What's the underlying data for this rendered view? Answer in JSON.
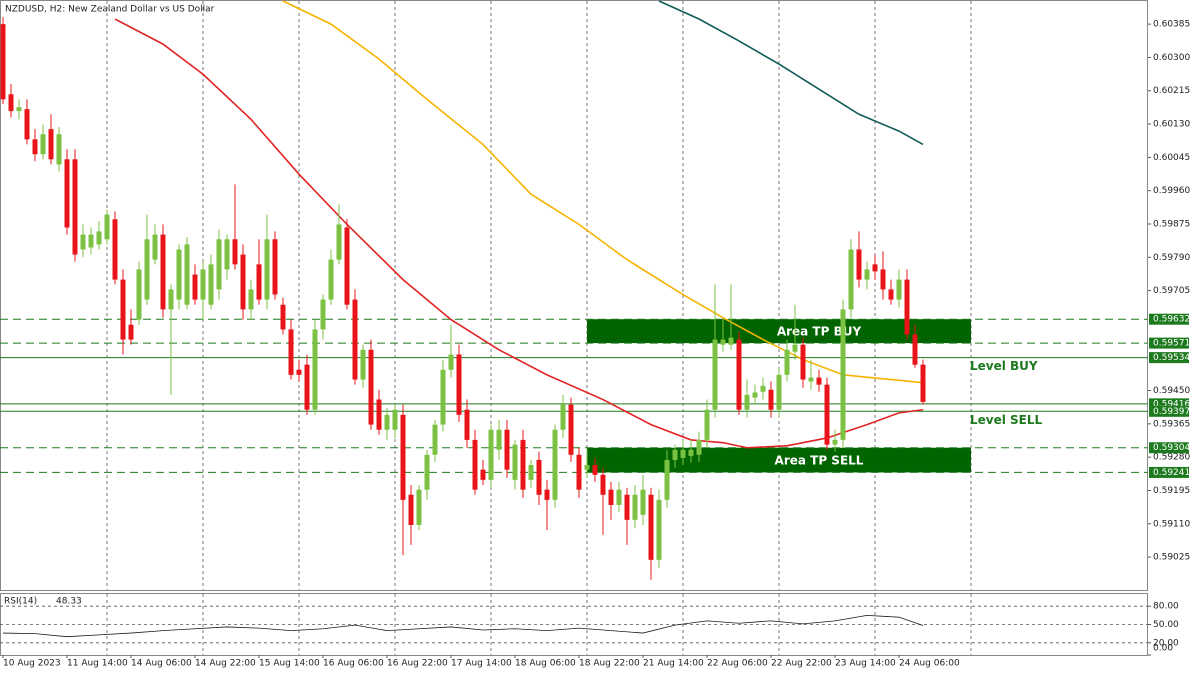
{
  "chart_data": {
    "type": "candlestick",
    "title": "NZDUSD, H2:  New Zealand Dollar vs US Dollar",
    "xlim": [
      -0.375,
      143.125
    ],
    "xticks": [
      {
        "value": 0,
        "label": "10 Aug 2023"
      },
      {
        "value": 8,
        "label": "11 Aug 14:00"
      },
      {
        "value": 16,
        "label": "14 Aug 06:00"
      },
      {
        "value": 24,
        "label": "14 Aug 22:00"
      },
      {
        "value": 32,
        "label": "15 Aug 14:00"
      },
      {
        "value": 40,
        "label": "16 Aug 06:00"
      },
      {
        "value": 48,
        "label": "16 Aug 22:00"
      },
      {
        "value": 56,
        "label": "17 Aug 14:00"
      },
      {
        "value": 64,
        "label": "18 Aug 06:00"
      },
      {
        "value": 72,
        "label": "18 Aug 22:00"
      },
      {
        "value": 80,
        "label": "21 Aug 14:00"
      },
      {
        "value": 88,
        "label": "22 Aug 06:00"
      },
      {
        "value": 96,
        "label": "22 Aug 22:00"
      },
      {
        "value": 104,
        "label": "23 Aug 14:00"
      },
      {
        "value": 112,
        "label": "24 Aug 06:00"
      }
    ],
    "xgrid": [
      13,
      25,
      37,
      49,
      61,
      73,
      85,
      97,
      109,
      121
    ],
    "ylim": [
      0.58941,
      0.60444
    ],
    "yticks": [
      {
        "value": 0.60385,
        "label": "0.60385"
      },
      {
        "value": 0.603,
        "label": "0.60300"
      },
      {
        "value": 0.60215,
        "label": "0.60215"
      },
      {
        "value": 0.6013,
        "label": "0.60130"
      },
      {
        "value": 0.60045,
        "label": "0.60045"
      },
      {
        "value": 0.5996,
        "label": "0.59960"
      },
      {
        "value": 0.59875,
        "label": "0.59875"
      },
      {
        "value": 0.5979,
        "label": "0.59790"
      },
      {
        "value": 0.59705,
        "label": "0.59705"
      },
      {
        "value": 0.5945,
        "label": "0.59450"
      },
      {
        "value": 0.59365,
        "label": "0.59365"
      },
      {
        "value": 0.5928,
        "label": "0.59280"
      },
      {
        "value": 0.59195,
        "label": "0.59195"
      },
      {
        "value": 0.5911,
        "label": "0.59110"
      },
      {
        "value": 0.59025,
        "label": "0.59025"
      }
    ],
    "up_color": "#7cc242",
    "down_color": "#e8141a",
    "open": [
      0.60385,
      0.60206,
      0.60163,
      0.60168,
      0.60091,
      0.60053,
      0.60117,
      0.60027,
      0.6004,
      0.6004,
      0.5981,
      0.59815,
      0.59823,
      0.59836,
      0.59887,
      0.59733,
      0.59618,
      0.59631,
      0.59682,
      0.59784,
      0.59848,
      0.59657,
      0.59682,
      0.59669,
      0.59746,
      0.59682,
      0.59669,
      0.59708,
      0.59759,
      0.59836,
      0.59797,
      0.59657,
      0.59772,
      0.59682,
      0.59836,
      0.59669,
      0.59606,
      0.59503,
      0.59516,
      0.59401,
      0.59606,
      0.59682,
      0.59784,
      0.59866,
      0.59682,
      0.59478,
      0.59554,
      0.59427,
      0.5935,
      0.5935,
      0.59388,
      0.59184,
      0.59107,
      0.59197,
      0.59286,
      0.59363,
      0.59503,
      0.59542,
      0.59401,
      0.59324,
      0.59248,
      0.59222,
      0.59299,
      0.5935,
      0.59222,
      0.59324,
      0.59222,
      0.59273,
      0.59197,
      0.59171,
      0.5935,
      0.59414,
      0.59286,
      0.59248,
      0.5926,
      0.59235,
      0.59197,
      0.59158,
      0.59184,
      0.5912,
      0.59133,
      0.59184,
      0.59018,
      0.59171,
      0.59273,
      0.59278,
      0.59283,
      0.59286,
      0.59324,
      0.59401,
      0.59567,
      0.59567,
      0.5958,
      0.59401,
      0.59432,
      0.59447,
      0.59452,
      0.59401,
      0.5949,
      0.59549,
      0.59567,
      0.59473,
      0.59483,
      0.59465,
      0.59312,
      0.59324,
      0.59657,
      0.5981,
      0.59733,
      0.59772,
      0.59759,
      0.59708,
      0.59682,
      0.59733,
      0.59593,
      0.59516
    ],
    "high": [
      0.60403,
      0.60232,
      0.60193,
      0.60193,
      0.60117,
      0.60129,
      0.60155,
      0.60122,
      0.60066,
      0.60066,
      0.59874,
      0.59866,
      0.59882,
      0.59912,
      0.59907,
      0.59759,
      0.59657,
      0.59779,
      0.59899,
      0.59874,
      0.59874,
      0.59721,
      0.59823,
      0.59841,
      0.59772,
      0.59779,
      0.59797,
      0.59861,
      0.59848,
      0.59976,
      0.59823,
      0.59733,
      0.59836,
      0.59899,
      0.59856,
      0.59687,
      0.59631,
      0.59529,
      0.59542,
      0.59631,
      0.59695,
      0.5981,
      0.59925,
      0.59887,
      0.59708,
      0.59567,
      0.5958,
      0.59452,
      0.59406,
      0.59414,
      0.59414,
      0.59209,
      0.59209,
      0.59299,
      0.59375,
      0.59529,
      0.59618,
      0.59567,
      0.59427,
      0.5935,
      0.59273,
      0.59363,
      0.59375,
      0.59375,
      0.59324,
      0.5935,
      0.59273,
      0.59294,
      0.59222,
      0.59363,
      0.59439,
      0.59432,
      0.59304,
      0.59299,
      0.59278,
      0.59253,
      0.59217,
      0.59217,
      0.59202,
      0.59209,
      0.59235,
      0.59202,
      0.59197,
      0.59299,
      0.59312,
      0.59324,
      0.59324,
      0.59345,
      0.59427,
      0.59721,
      0.59631,
      0.59721,
      0.596,
      0.59478,
      0.59465,
      0.59483,
      0.59473,
      0.59508,
      0.5958,
      0.59669,
      0.59585,
      0.59529,
      0.59503,
      0.59483,
      0.5935,
      0.59682,
      0.59836,
      0.59856,
      0.59779,
      0.59797,
      0.59805,
      0.59733,
      0.59759,
      0.59759,
      0.59618,
      0.59529
    ],
    "low": [
      0.60181,
      0.60147,
      0.60142,
      0.60078,
      0.60035,
      0.6004,
      0.60027,
      0.60009,
      0.59848,
      0.59779,
      0.5979,
      0.59797,
      0.5981,
      0.59823,
      0.59721,
      0.59542,
      0.59567,
      0.59618,
      0.59669,
      0.59772,
      0.59636,
      0.59439,
      0.59657,
      0.59657,
      0.59669,
      0.59631,
      0.59657,
      0.59682,
      0.59733,
      0.59759,
      0.59631,
      0.59631,
      0.59669,
      0.59657,
      0.59682,
      0.59593,
      0.59478,
      0.59473,
      0.59388,
      0.59388,
      0.5958,
      0.59669,
      0.59772,
      0.59657,
      0.59465,
      0.59457,
      0.5935,
      0.59337,
      0.59324,
      0.59329,
      0.5903,
      0.59056,
      0.59094,
      0.59171,
      0.59268,
      0.59345,
      0.59483,
      0.5937,
      0.59304,
      0.59184,
      0.59209,
      0.59202,
      0.59273,
      0.59227,
      0.59197,
      0.59176,
      0.59202,
      0.59158,
      0.59094,
      0.59151,
      0.59329,
      0.59268,
      0.59176,
      0.59227,
      0.59217,
      0.59082,
      0.5912,
      0.5914,
      0.59056,
      0.59099,
      0.59107,
      0.58967,
      0.58997,
      0.59151,
      0.59253,
      0.5926,
      0.59266,
      0.59268,
      0.59304,
      0.59381,
      0.59549,
      0.59554,
      0.59388,
      0.59381,
      0.59414,
      0.59427,
      0.59381,
      0.59381,
      0.59473,
      0.59529,
      0.59457,
      0.59452,
      0.59447,
      0.59299,
      0.59294,
      0.59304,
      0.59636,
      0.59713,
      0.59708,
      0.59733,
      0.59682,
      0.59669,
      0.59662,
      0.5958,
      0.59508,
      0.59414
    ],
    "close": [
      0.60193,
      0.60163,
      0.60173,
      0.60091,
      0.60053,
      0.60104,
      0.6004,
      0.60104,
      0.59866,
      0.59797,
      0.59848,
      0.59848,
      0.59856,
      0.59899,
      0.59733,
      0.5958,
      0.5958,
      0.59759,
      0.59836,
      0.59848,
      0.59657,
      0.59708,
      0.5981,
      0.59823,
      0.59682,
      0.59759,
      0.59772,
      0.59836,
      0.59836,
      0.59772,
      0.59657,
      0.59708,
      0.59682,
      0.59836,
      0.59695,
      0.59606,
      0.5949,
      0.5949,
      0.59401,
      0.59606,
      0.59682,
      0.59784,
      0.59874,
      0.59669,
      0.59478,
      0.59554,
      0.59363,
      0.5935,
      0.59388,
      0.59401,
      0.59171,
      0.59107,
      0.59197,
      0.59286,
      0.59363,
      0.59503,
      0.59542,
      0.59388,
      0.59324,
      0.59197,
      0.59222,
      0.5935,
      0.5935,
      0.59248,
      0.59312,
      0.59197,
      0.5926,
      0.59184,
      0.59171,
      0.5935,
      0.59414,
      0.59286,
      0.59197,
      0.5926,
      0.59235,
      0.59184,
      0.59158,
      0.59197,
      0.5912,
      0.59184,
      0.59197,
      0.59018,
      0.59171,
      0.59273,
      0.59299,
      0.59299,
      0.59299,
      0.59324,
      0.59401,
      0.5958,
      0.5958,
      0.59585,
      0.59401,
      0.59439,
      0.59445,
      0.59462,
      0.59401,
      0.5949,
      0.59554,
      0.59567,
      0.59478,
      0.59483,
      0.59465,
      0.59312,
      0.59324,
      0.59657,
      0.5981,
      0.59733,
      0.59759,
      0.59754,
      0.59708,
      0.59682,
      0.59733,
      0.59593,
      0.59516,
      0.59421
    ],
    "lines": [
      {
        "color": "#e02424",
        "x": [
          14,
          20,
          25,
          31,
          37,
          43,
          50,
          56,
          62,
          68,
          75,
          81,
          86,
          90,
          93,
          98,
          103,
          108,
          112,
          115
        ],
        "values": [
          0.60398,
          0.60334,
          0.60257,
          0.60142,
          0.60002,
          0.59874,
          0.59733,
          0.59631,
          0.59554,
          0.5949,
          0.59427,
          0.59363,
          0.59324,
          0.59317,
          0.59304,
          0.59309,
          0.59329,
          0.59363,
          0.59393,
          0.59401
        ]
      },
      {
        "color": "#f5b400",
        "x": [
          35,
          41,
          47,
          53,
          60,
          66,
          72,
          78,
          85,
          90,
          95,
          100,
          105,
          110,
          115
        ],
        "values": [
          0.60444,
          0.60385,
          0.60296,
          0.60193,
          0.60078,
          0.59951,
          0.59874,
          0.59784,
          0.59695,
          0.59636,
          0.5958,
          0.59529,
          0.5949,
          0.5948,
          0.5947
        ]
      },
      {
        "color": "#0f5c57",
        "x": [
          82,
          87,
          92,
          97,
          102,
          107,
          112,
          115
        ],
        "values": [
          0.60444,
          0.60398,
          0.60342,
          0.60283,
          0.60219,
          0.60155,
          0.60112,
          0.60078
        ]
      }
    ],
    "levels": [
      {
        "value": 0.59632,
        "label": "0.59632",
        "style": "dashed"
      },
      {
        "value": 0.59571,
        "label": "0.59571",
        "style": "dashed"
      },
      {
        "value": 0.59534,
        "label": "0.59534",
        "style": "solid",
        "note": "Level BUY"
      },
      {
        "value": 0.59416,
        "label": "0.59416",
        "style": "solid"
      },
      {
        "value": 0.59397,
        "label": "0.59397",
        "style": "solid",
        "note": "Level SELL"
      },
      {
        "value": 0.59304,
        "label": "0.59304",
        "style": "dashed"
      },
      {
        "value": 0.59241,
        "label": "0.59241",
        "style": "dashed"
      }
    ],
    "level_color": "#1e7a1e",
    "zones": [
      {
        "label": "Area TP BUY",
        "start": 73,
        "end": 121,
        "from": 0.59571,
        "to": 0.59632,
        "color": "#006400"
      },
      {
        "label": "Area TP SELL",
        "start": 73,
        "end": 121,
        "from": 0.59241,
        "to": 0.59304,
        "color": "#006400"
      }
    ],
    "rsi": {
      "name": "RSI(14)",
      "color": "#1a1a1a",
      "x": [
        0,
        4,
        8,
        12,
        16,
        20,
        24,
        28,
        32,
        36,
        40,
        44,
        48,
        52,
        56,
        60,
        64,
        68,
        72,
        76,
        80,
        84,
        88,
        92,
        96,
        100,
        104,
        108,
        112,
        115
      ],
      "values": [
        36,
        35,
        30,
        33,
        36,
        40,
        43,
        46,
        44,
        40,
        43,
        49,
        40,
        43,
        46,
        41,
        43,
        40,
        44,
        40,
        36,
        49,
        56,
        52,
        56,
        51,
        56,
        65,
        62,
        48.33
      ],
      "ylim": [
        0,
        100
      ],
      "yticks": [
        {
          "value": 80,
          "label": "80.00"
        },
        {
          "value": 50,
          "label": "50.00"
        },
        {
          "value": 20,
          "label": "20.00"
        },
        {
          "value": 0,
          "label": "0.00"
        }
      ],
      "levels": [
        80,
        50,
        20
      ]
    }
  }
}
